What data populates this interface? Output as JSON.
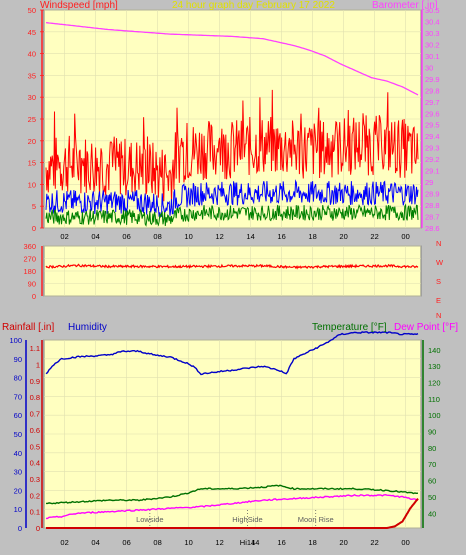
{
  "colors": {
    "background": "#c0c0c0",
    "plot_bg": "#ffffc0",
    "wind": "#ff0000",
    "gust_blue": "#0000ff",
    "gust_green": "#008000",
    "barometer": "#ff40ff",
    "direction": "#ff0000",
    "humidity": "#0000c8",
    "temperature": "#007000",
    "dew_point": "#ff00ff",
    "rainfall": "#d00000",
    "title": "#e0e000"
  },
  "chart_data": [
    {
      "type": "line",
      "name": "wind-barometer",
      "title": "24 hour graph day   February 17 2022",
      "left_label": "Windspeed [mph]",
      "right_label": "Barometer [.in]",
      "x_ticks": [
        "02",
        "04",
        "06",
        "08",
        "10",
        "12",
        "14",
        "16",
        "18",
        "20",
        "22",
        "00"
      ],
      "left_ticks": [
        "0",
        "5",
        "10",
        "15",
        "20",
        "25",
        "30",
        "35",
        "40",
        "45",
        "50"
      ],
      "left_range": [
        0,
        50
      ],
      "right_ticks": [
        "28.6",
        "28.7",
        "28.8",
        "28.9",
        "29",
        "29.1",
        "29.2",
        "29.3",
        "29.4",
        "29.5",
        "29.6",
        "29.7",
        "29.8",
        "29.9",
        "30",
        "30.1",
        "30.2",
        "30.3",
        "30.4",
        "30.5"
      ],
      "right_range": [
        28.6,
        30.5
      ],
      "series": [
        {
          "key": "wind_peak",
          "color": "#ff0000",
          "x": [
            0,
            2,
            4,
            6,
            8,
            8.5,
            10,
            12,
            14,
            16,
            18,
            20,
            22,
            23.5,
            24
          ],
          "y": [
            14,
            15,
            14,
            14,
            12,
            17,
            18,
            18,
            19,
            18,
            18,
            19,
            19,
            18,
            16
          ]
        },
        {
          "key": "wind_avg",
          "color": "#0000ff",
          "x": [
            0,
            2,
            4,
            6,
            8,
            8.5,
            10,
            12,
            14,
            16,
            18,
            20,
            22,
            24
          ],
          "y": [
            6,
            6,
            6,
            6,
            5,
            7,
            8,
            8,
            8,
            8,
            8,
            8,
            8,
            8
          ]
        },
        {
          "key": "wind_low",
          "color": "#008000",
          "x": [
            0,
            2,
            4,
            6,
            8,
            8.5,
            10,
            12,
            14,
            16,
            18,
            20,
            22,
            24
          ],
          "y": [
            2.5,
            2.5,
            2.5,
            2.5,
            2,
            3,
            3.5,
            3.5,
            3.5,
            3.5,
            3.5,
            3.5,
            3.5,
            3.5
          ]
        },
        {
          "key": "barometer",
          "color": "#ff40ff",
          "axis": "right",
          "x": [
            0,
            2,
            4,
            6,
            8,
            10,
            12,
            14,
            16,
            17,
            18,
            19,
            20,
            21,
            22,
            23,
            24
          ],
          "y": [
            30.39,
            30.36,
            30.33,
            30.31,
            30.29,
            30.28,
            30.27,
            30.25,
            30.19,
            30.15,
            30.1,
            30.03,
            29.97,
            29.91,
            29.88,
            29.83,
            29.76
          ]
        }
      ]
    },
    {
      "type": "line",
      "name": "wind-direction",
      "left_ticks": [
        "0",
        "90",
        "180",
        "270",
        "360"
      ],
      "left_range": [
        0,
        360
      ],
      "right_ticks": [
        "N",
        "W",
        "S",
        "E",
        "N"
      ],
      "series": [
        {
          "key": "direction",
          "color": "#ff0000",
          "x": [
            0,
            1,
            2,
            4,
            6,
            8,
            10,
            12,
            14,
            16,
            18,
            20,
            22,
            24
          ],
          "y": [
            210,
            213,
            220,
            212,
            213,
            211,
            213,
            216,
            217,
            206,
            212,
            215,
            217,
            209
          ]
        }
      ]
    },
    {
      "type": "line",
      "name": "temp-humidity-rain",
      "label_rain": "Rainfall [.in]",
      "label_humidity": "Humidity",
      "label_temp": "Temperature [°F]",
      "label_dew": "Dew Point [°F]",
      "x_ticks": [
        "02",
        "04",
        "06",
        "08",
        "10",
        "12",
        "Hi14",
        "14",
        "16",
        "18",
        "20",
        "22",
        "00"
      ],
      "humidity_ticks": [
        "0",
        "10",
        "20",
        "30",
        "40",
        "50",
        "60",
        "70",
        "80",
        "90",
        "100"
      ],
      "humidity_range": [
        0,
        100
      ],
      "rain_ticks": [
        "0",
        "0.1",
        "0.2",
        "0.3",
        "0.4",
        "0.5",
        "0.6",
        "0.7",
        "0.8",
        "0.9",
        "1",
        "1.1"
      ],
      "rain_range": [
        0,
        1.15
      ],
      "temp_ticks": [
        "40",
        "50",
        "60",
        "70",
        "80",
        "90",
        "100",
        "110",
        "120",
        "130",
        "140"
      ],
      "temp_range": [
        31,
        146
      ],
      "annotations": [
        {
          "text": "Lowside",
          "x": 6.7
        },
        {
          "text": "HighSide",
          "x": 13.0
        },
        {
          "text": "Moon Rise",
          "x": 17.4
        }
      ],
      "series": [
        {
          "key": "humidity",
          "color": "#0000c8",
          "axis": "humidity",
          "x": [
            0,
            0.5,
            1,
            2,
            4,
            5,
            6,
            7,
            8,
            9,
            9.5,
            10,
            11,
            12,
            13,
            14,
            15,
            15.5,
            16,
            17,
            18,
            19,
            20,
            21,
            22,
            23,
            24
          ],
          "y": [
            82,
            87,
            90,
            91,
            92,
            94,
            94,
            92,
            91,
            88,
            86,
            82,
            83,
            84,
            85,
            86,
            84,
            82,
            90,
            94,
            98,
            103,
            104,
            104,
            104,
            103,
            103
          ]
        },
        {
          "key": "temperature",
          "color": "#007000",
          "axis": "temp",
          "x": [
            0,
            2,
            4,
            6,
            8,
            9,
            10,
            12,
            14,
            15,
            16,
            18,
            20,
            22,
            23,
            24
          ],
          "y": [
            46,
            47,
            48,
            48,
            50,
            52,
            55,
            55,
            56,
            57,
            55,
            55,
            55,
            54,
            53,
            52
          ]
        },
        {
          "key": "dew_point",
          "color": "#ff00ff",
          "axis": "temp",
          "x": [
            0,
            1,
            2,
            4,
            6,
            8,
            10,
            12,
            14,
            16,
            18,
            20,
            22,
            23,
            24
          ],
          "y": [
            37,
            38,
            40,
            41,
            42,
            43,
            44,
            46,
            48,
            49,
            50,
            51,
            51,
            50,
            48
          ]
        },
        {
          "key": "rainfall",
          "color": "#d00000",
          "axis": "rain",
          "x": [
            0,
            1,
            2,
            4,
            6,
            8,
            10,
            12,
            14,
            16,
            18,
            20,
            22,
            22.5,
            23,
            23.5,
            24
          ],
          "y": [
            0,
            0,
            0,
            0,
            0,
            0,
            0,
            0,
            0,
            0,
            0,
            0,
            0,
            0.01,
            0.04,
            0.12,
            0.18
          ]
        }
      ]
    }
  ]
}
